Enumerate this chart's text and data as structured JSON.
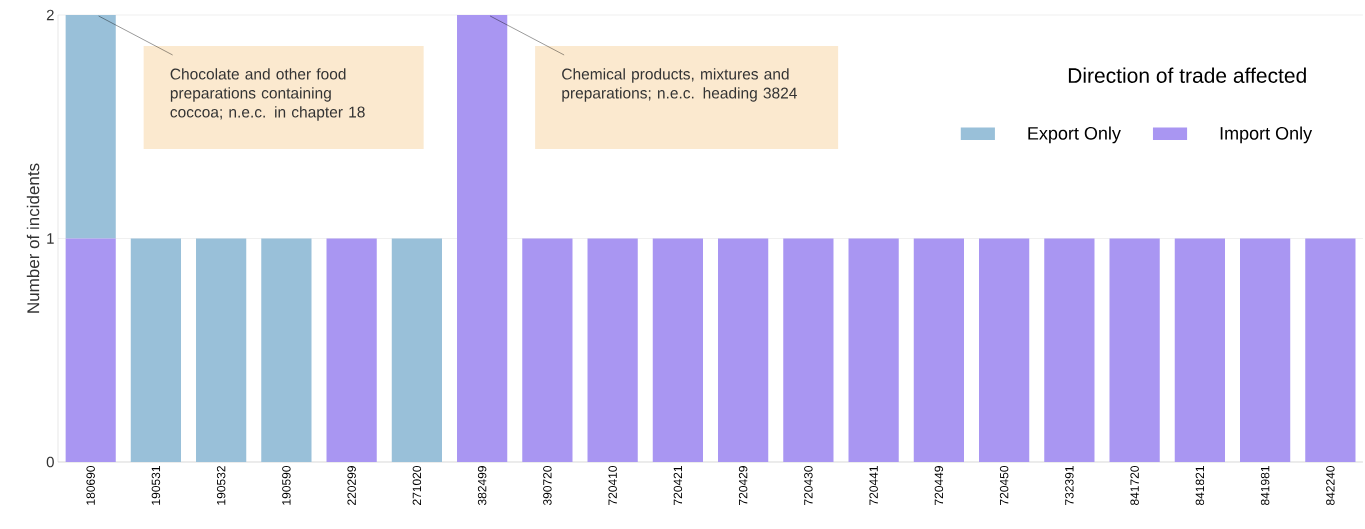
{
  "chart_data": {
    "type": "bar",
    "stacked": true,
    "ylabel": "Number of incidents",
    "legend_title": "Direction of trade affected",
    "categories": [
      "180690",
      "190531",
      "190532",
      "190590",
      "220299",
      "271020",
      "382499",
      "390720",
      "720410",
      "720421",
      "720429",
      "720430",
      "720441",
      "720449",
      "720450",
      "732391",
      "841720",
      "841821",
      "841981",
      "842240"
    ],
    "series": [
      {
        "name": "Import Only",
        "color": "#a996f2",
        "values": [
          1,
          0,
          0,
          0,
          1,
          0,
          2,
          1,
          1,
          1,
          1,
          1,
          1,
          1,
          1,
          1,
          1,
          1,
          1,
          1
        ]
      },
      {
        "name": "Export Only",
        "color": "#99c0d9",
        "values": [
          1,
          1,
          1,
          1,
          0,
          1,
          0,
          0,
          0,
          0,
          0,
          0,
          0,
          0,
          0,
          0,
          0,
          0,
          0,
          0
        ]
      }
    ],
    "ylim": [
      0,
      2
    ],
    "yticks": [
      0,
      1,
      2
    ],
    "grid": "y",
    "legend": "top right",
    "annotations": [
      {
        "text": "Chocolate and other food preparations containing coccoa; n.e.c. in chapter 18",
        "x": "180690",
        "y": 2
      },
      {
        "text": "Chemical products, mixtures and preparations; n.e.c. heading 3824",
        "x": "382499",
        "y": 2
      }
    ]
  }
}
